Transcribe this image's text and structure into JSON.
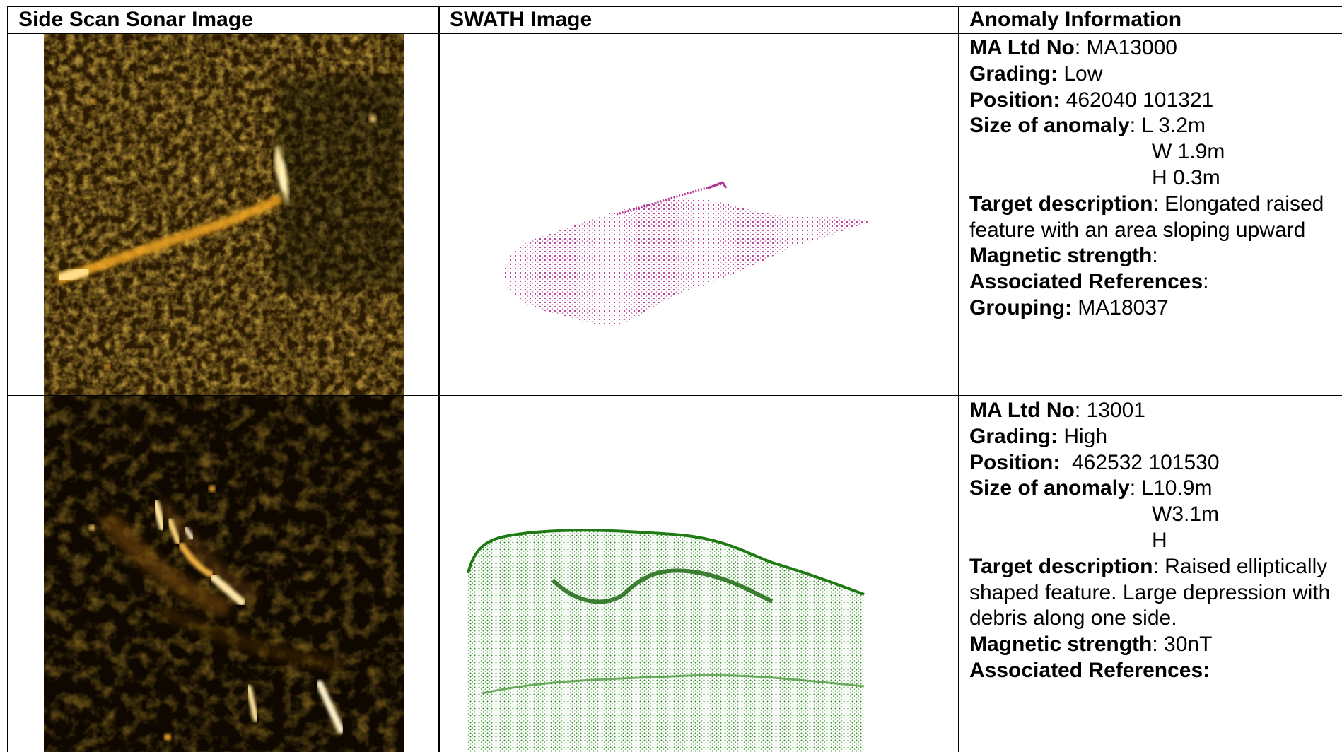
{
  "headers": {
    "sonar": "Side Scan Sonar Image",
    "swath": "SWATH Image",
    "info": "Anomaly Information"
  },
  "rows": [
    {
      "ma_label": "MA Ltd No",
      "ma_sep": ": ",
      "ma_value": "MA13000",
      "grading_label": "Grading:",
      "grading_value": " Low",
      "position_label": "Position:",
      "position_value": " 462040 101321",
      "size_label": "Size of anomaly",
      "size_l": ": L 3.2m",
      "size_w": "W 1.9m",
      "size_h": "H 0.3m",
      "target_label": "Target description",
      "target_value": ": Elongated raised feature with an area sloping upward",
      "magnetic_label": "Magnetic strength",
      "magnetic_value": ":",
      "assoc_label": "Associated References",
      "assoc_value": ":",
      "grouping_label": "Grouping:",
      "grouping_value": " MA18037",
      "swath_color": "#b0308f"
    },
    {
      "ma_label": "MA Ltd No",
      "ma_sep": ": ",
      "ma_value": "13001",
      "grading_label": "Grading:",
      "grading_value": " High",
      "position_label": "Position:",
      "position_value": "  462532 101530",
      "size_label": "Size of anomaly",
      "size_l": ": L10.9m",
      "size_w": "W3.1m",
      "size_h": "H",
      "target_label": "Target description",
      "target_value": ": Raised elliptically shaped feature. Large depression with debris along one side.",
      "magnetic_label": "Magnetic strength",
      "magnetic_value": ": 30nT",
      "assoc_label": "Associated References:",
      "swath_color": "#2a8a1e"
    }
  ],
  "colors": {
    "sonar_dark": "#1e1300",
    "sonar_bright": "#f5a623",
    "sonar_highlight": "#fff2c0"
  }
}
